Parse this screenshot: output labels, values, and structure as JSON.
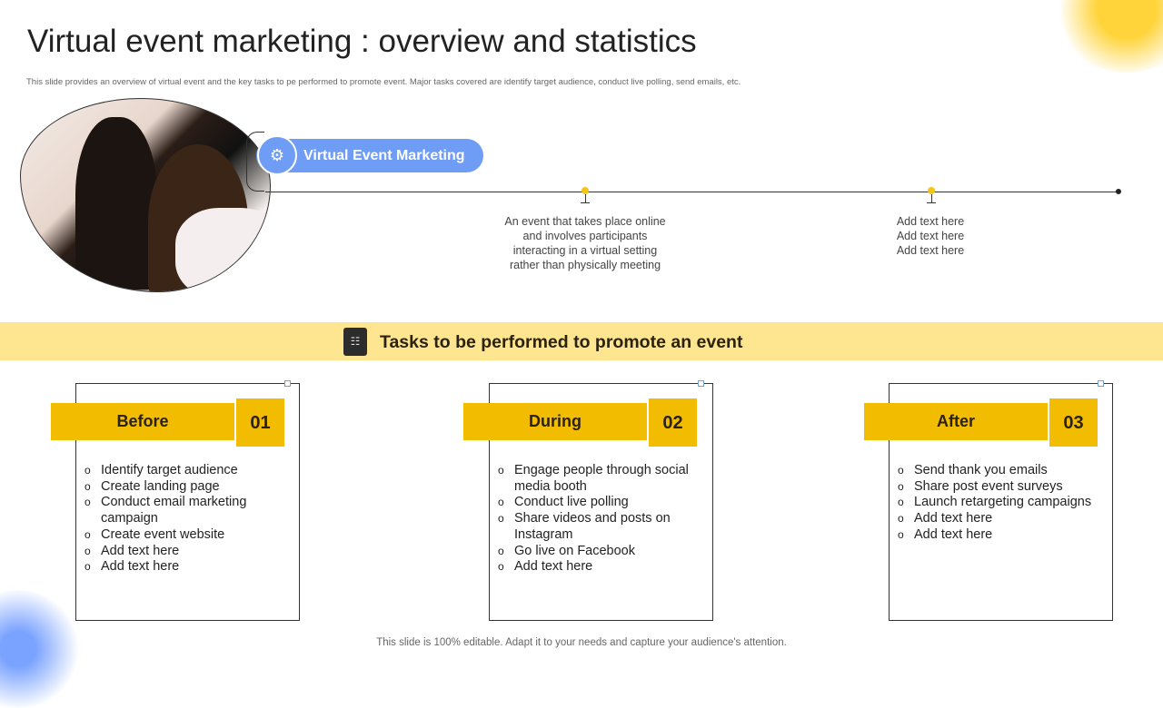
{
  "title": "Virtual event marketing : overview and statistics",
  "subtitle": "This slide provides an overview of virtual event and the key tasks to pe performed to promote event. Major tasks covered are identify target audience, conduct live polling, send emails, etc.",
  "pill": {
    "label": "Virtual Event Marketing",
    "icon": "virtual-event-icon",
    "color": "#6f9df5"
  },
  "timeline": [
    {
      "text": [
        "An event  that takes place online",
        "and involves  participants",
        "interacting  in a virtual  setting",
        "rather than  physically meeting"
      ]
    },
    {
      "text": [
        "Add text here",
        "Add text here",
        "Add text here"
      ]
    }
  ],
  "banner": {
    "title": "Tasks to be performed to promote an event",
    "icon": "checklist-icon",
    "color": "#fde68f"
  },
  "accent": "#f2bc00",
  "cards": [
    {
      "label": "Before",
      "number": "01",
      "items": [
        "Identify target audience",
        "Create landing page",
        "Conduct email marketing campaign",
        "Create event website",
        "Add text here",
        "Add text here"
      ]
    },
    {
      "label": "During",
      "number": "02",
      "items": [
        "Engage people through social media booth",
        "Conduct live polling",
        "Share videos and posts on Instagram",
        "Go live on Facebook",
        "Add text here"
      ]
    },
    {
      "label": "After",
      "number": "03",
      "items": [
        "Send thank you emails",
        "Share post event surveys",
        "Launch retargeting campaigns",
        "Add text here",
        "Add text here"
      ]
    }
  ],
  "footer": "This slide is 100% editable. Adapt it to your needs and capture your audience's attention."
}
